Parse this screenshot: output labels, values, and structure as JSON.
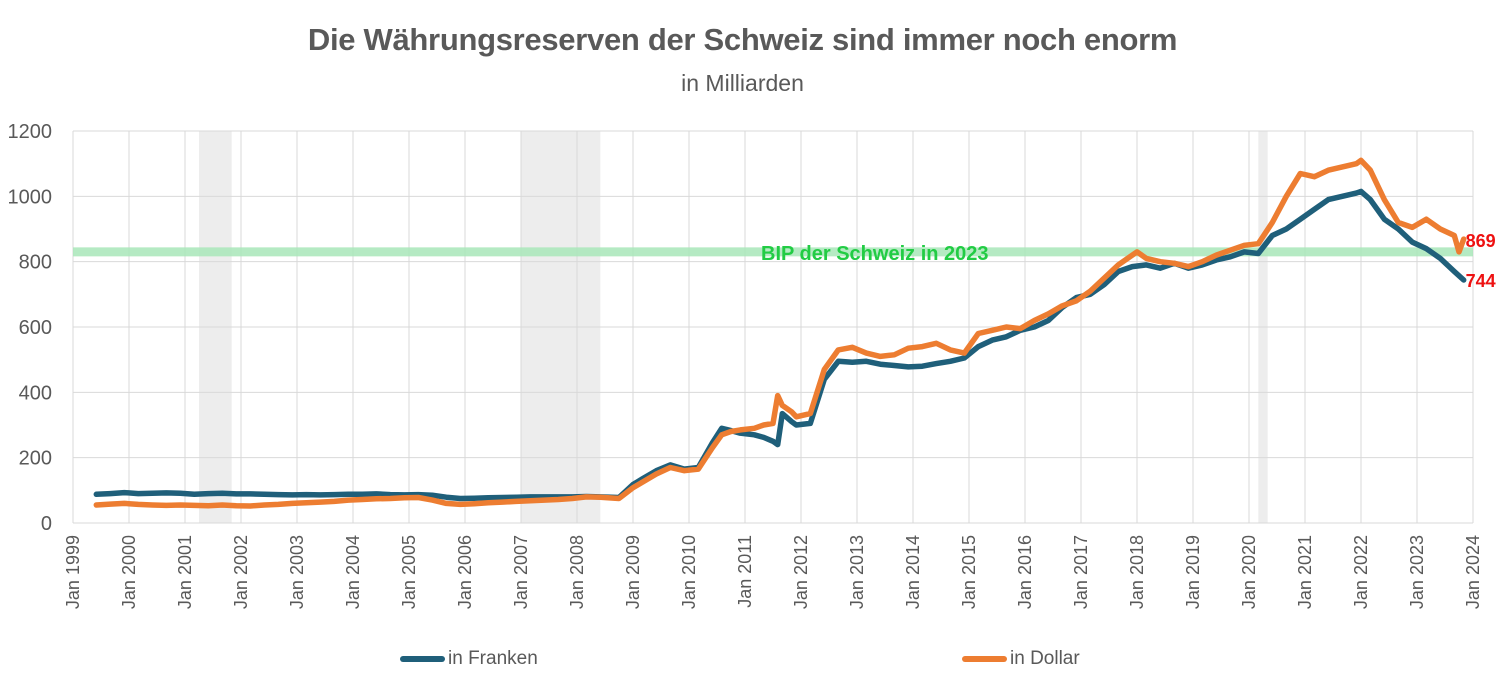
{
  "chart_data": {
    "type": "line",
    "title": "Die Währungsreserven der Schweiz sind immer noch enorm",
    "subtitle": "in Milliarden",
    "ylim": [
      0,
      1200
    ],
    "yticks": [
      0,
      200,
      400,
      600,
      800,
      1000,
      1200
    ],
    "xlim": [
      "1999-01",
      "2024-01"
    ],
    "xtick_labels": [
      "Jan 1999",
      "Jan 2000",
      "Jan 2001",
      "Jan 2002",
      "Jan 2003",
      "Jan 2004",
      "Jan 2005",
      "Jan 2006",
      "Jan 2007",
      "Jan 2008",
      "Jan 2009",
      "Jan 2010",
      "Jan 2011",
      "Jan 2012",
      "Jan 2013",
      "Jan 2014",
      "Jan 2015",
      "Jan 2016",
      "Jan 2017",
      "Jan 2018",
      "Jan 2019",
      "Jan 2020",
      "Jan 2021",
      "Jan 2022",
      "Jan 2023",
      "Jan 2024"
    ],
    "grid": "horizontal",
    "legend_position": "bottom",
    "shaded_periods": [
      {
        "start": "2001-04",
        "end": "2001-11"
      },
      {
        "start": "2007-01",
        "end": "2008-06"
      },
      {
        "start": "2020-03",
        "end": "2020-05"
      }
    ],
    "reference_line": {
      "value": 830,
      "label": "BIP der Schweiz in 2023",
      "color": "#a8e6b8",
      "label_color": "#22cc44"
    },
    "series": [
      {
        "name": "in Franken",
        "color": "#1f5f7a",
        "points": [
          [
            "1999-06",
            88
          ],
          [
            "1999-09",
            90
          ],
          [
            "1999-12",
            93
          ],
          [
            "2000-03",
            90
          ],
          [
            "2000-06",
            91
          ],
          [
            "2000-09",
            92
          ],
          [
            "2000-12",
            91
          ],
          [
            "2001-03",
            88
          ],
          [
            "2001-06",
            90
          ],
          [
            "2001-09",
            91
          ],
          [
            "2001-12",
            89
          ],
          [
            "2002-03",
            89
          ],
          [
            "2002-06",
            88
          ],
          [
            "2002-09",
            87
          ],
          [
            "2002-12",
            86
          ],
          [
            "2003-03",
            87
          ],
          [
            "2003-06",
            86
          ],
          [
            "2003-09",
            87
          ],
          [
            "2003-12",
            88
          ],
          [
            "2004-03",
            88
          ],
          [
            "2004-06",
            89
          ],
          [
            "2004-09",
            87
          ],
          [
            "2004-12",
            86
          ],
          [
            "2005-03",
            87
          ],
          [
            "2005-06",
            85
          ],
          [
            "2005-09",
            79
          ],
          [
            "2005-12",
            75
          ],
          [
            "2006-03",
            76
          ],
          [
            "2006-06",
            77
          ],
          [
            "2006-09",
            78
          ],
          [
            "2006-12",
            79
          ],
          [
            "2007-03",
            80
          ],
          [
            "2007-06",
            80
          ],
          [
            "2007-09",
            80
          ],
          [
            "2007-12",
            80
          ],
          [
            "2008-03",
            81
          ],
          [
            "2008-06",
            80
          ],
          [
            "2008-10",
            78
          ],
          [
            "2009-01",
            118
          ],
          [
            "2009-03",
            135
          ],
          [
            "2009-06",
            160
          ],
          [
            "2009-09",
            178
          ],
          [
            "2009-12",
            165
          ],
          [
            "2010-03",
            170
          ],
          [
            "2010-06",
            245
          ],
          [
            "2010-08",
            290
          ],
          [
            "2010-10",
            283
          ],
          [
            "2010-12",
            275
          ],
          [
            "2011-03",
            270
          ],
          [
            "2011-05",
            262
          ],
          [
            "2011-07",
            250
          ],
          [
            "2011-08",
            240
          ],
          [
            "2011-09",
            335
          ],
          [
            "2011-11",
            310
          ],
          [
            "2011-12",
            300
          ],
          [
            "2012-03",
            305
          ],
          [
            "2012-06",
            440
          ],
          [
            "2012-09",
            495
          ],
          [
            "2012-12",
            492
          ],
          [
            "2013-03",
            495
          ],
          [
            "2013-06",
            486
          ],
          [
            "2013-09",
            482
          ],
          [
            "2013-12",
            478
          ],
          [
            "2014-03",
            480
          ],
          [
            "2014-06",
            488
          ],
          [
            "2014-09",
            495
          ],
          [
            "2014-12",
            505
          ],
          [
            "2015-03",
            540
          ],
          [
            "2015-06",
            560
          ],
          [
            "2015-09",
            570
          ],
          [
            "2015-12",
            590
          ],
          [
            "2016-03",
            600
          ],
          [
            "2016-06",
            620
          ],
          [
            "2016-09",
            660
          ],
          [
            "2016-12",
            690
          ],
          [
            "2017-03",
            700
          ],
          [
            "2017-06",
            730
          ],
          [
            "2017-09",
            770
          ],
          [
            "2017-12",
            785
          ],
          [
            "2018-03",
            790
          ],
          [
            "2018-06",
            780
          ],
          [
            "2018-09",
            795
          ],
          [
            "2018-12",
            780
          ],
          [
            "2019-03",
            790
          ],
          [
            "2019-06",
            805
          ],
          [
            "2019-09",
            815
          ],
          [
            "2019-12",
            830
          ],
          [
            "2020-03",
            825
          ],
          [
            "2020-06",
            880
          ],
          [
            "2020-09",
            900
          ],
          [
            "2020-12",
            930
          ],
          [
            "2021-03",
            960
          ],
          [
            "2021-06",
            990
          ],
          [
            "2021-09",
            1000
          ],
          [
            "2021-12",
            1010
          ],
          [
            "2022-01",
            1015
          ],
          [
            "2022-03",
            990
          ],
          [
            "2022-06",
            930
          ],
          [
            "2022-09",
            900
          ],
          [
            "2022-12",
            860
          ],
          [
            "2023-03",
            840
          ],
          [
            "2023-06",
            810
          ],
          [
            "2023-09",
            770
          ],
          [
            "2023-11",
            744
          ]
        ],
        "end_label": "744"
      },
      {
        "name": "in Dollar",
        "color": "#ed7d31",
        "points": [
          [
            "1999-06",
            55
          ],
          [
            "1999-09",
            58
          ],
          [
            "1999-12",
            60
          ],
          [
            "2000-03",
            57
          ],
          [
            "2000-06",
            55
          ],
          [
            "2000-09",
            54
          ],
          [
            "2000-12",
            55
          ],
          [
            "2001-03",
            54
          ],
          [
            "2001-06",
            53
          ],
          [
            "2001-09",
            55
          ],
          [
            "2001-12",
            53
          ],
          [
            "2002-03",
            52
          ],
          [
            "2002-06",
            55
          ],
          [
            "2002-09",
            57
          ],
          [
            "2002-12",
            60
          ],
          [
            "2003-03",
            62
          ],
          [
            "2003-06",
            64
          ],
          [
            "2003-09",
            66
          ],
          [
            "2003-12",
            70
          ],
          [
            "2004-03",
            72
          ],
          [
            "2004-06",
            74
          ],
          [
            "2004-09",
            75
          ],
          [
            "2004-12",
            77
          ],
          [
            "2005-03",
            78
          ],
          [
            "2005-06",
            70
          ],
          [
            "2005-09",
            60
          ],
          [
            "2005-12",
            57
          ],
          [
            "2006-03",
            59
          ],
          [
            "2006-06",
            62
          ],
          [
            "2006-09",
            64
          ],
          [
            "2006-12",
            66
          ],
          [
            "2007-03",
            68
          ],
          [
            "2007-06",
            70
          ],
          [
            "2007-09",
            72
          ],
          [
            "2007-12",
            75
          ],
          [
            "2008-03",
            80
          ],
          [
            "2008-06",
            79
          ],
          [
            "2008-10",
            75
          ],
          [
            "2009-01",
            108
          ],
          [
            "2009-03",
            125
          ],
          [
            "2009-06",
            150
          ],
          [
            "2009-09",
            170
          ],
          [
            "2009-12",
            160
          ],
          [
            "2010-03",
            165
          ],
          [
            "2010-06",
            230
          ],
          [
            "2010-08",
            270
          ],
          [
            "2010-10",
            280
          ],
          [
            "2010-12",
            285
          ],
          [
            "2011-03",
            290
          ],
          [
            "2011-05",
            300
          ],
          [
            "2011-07",
            305
          ],
          [
            "2011-08",
            390
          ],
          [
            "2011-09",
            360
          ],
          [
            "2011-11",
            340
          ],
          [
            "2011-12",
            325
          ],
          [
            "2012-03",
            335
          ],
          [
            "2012-06",
            470
          ],
          [
            "2012-09",
            530
          ],
          [
            "2012-12",
            538
          ],
          [
            "2013-03",
            520
          ],
          [
            "2013-06",
            510
          ],
          [
            "2013-09",
            515
          ],
          [
            "2013-12",
            535
          ],
          [
            "2014-03",
            540
          ],
          [
            "2014-06",
            550
          ],
          [
            "2014-09",
            530
          ],
          [
            "2014-12",
            520
          ],
          [
            "2015-03",
            580
          ],
          [
            "2015-06",
            590
          ],
          [
            "2015-09",
            600
          ],
          [
            "2015-12",
            595
          ],
          [
            "2016-03",
            620
          ],
          [
            "2016-06",
            640
          ],
          [
            "2016-09",
            665
          ],
          [
            "2016-12",
            680
          ],
          [
            "2017-03",
            710
          ],
          [
            "2017-06",
            750
          ],
          [
            "2017-09",
            790
          ],
          [
            "2017-12",
            820
          ],
          [
            "2018-01",
            830
          ],
          [
            "2018-03",
            810
          ],
          [
            "2018-06",
            800
          ],
          [
            "2018-09",
            795
          ],
          [
            "2018-12",
            785
          ],
          [
            "2019-03",
            800
          ],
          [
            "2019-06",
            820
          ],
          [
            "2019-09",
            835
          ],
          [
            "2019-12",
            850
          ],
          [
            "2020-03",
            855
          ],
          [
            "2020-06",
            920
          ],
          [
            "2020-09",
            1000
          ],
          [
            "2020-12",
            1070
          ],
          [
            "2021-03",
            1060
          ],
          [
            "2021-06",
            1080
          ],
          [
            "2021-09",
            1090
          ],
          [
            "2021-12",
            1100
          ],
          [
            "2022-01",
            1110
          ],
          [
            "2022-03",
            1080
          ],
          [
            "2022-06",
            990
          ],
          [
            "2022-09",
            920
          ],
          [
            "2022-12",
            905
          ],
          [
            "2023-03",
            930
          ],
          [
            "2023-06",
            900
          ],
          [
            "2023-09",
            880
          ],
          [
            "2023-10",
            830
          ],
          [
            "2023-11",
            869
          ]
        ],
        "end_label": "869"
      }
    ]
  }
}
